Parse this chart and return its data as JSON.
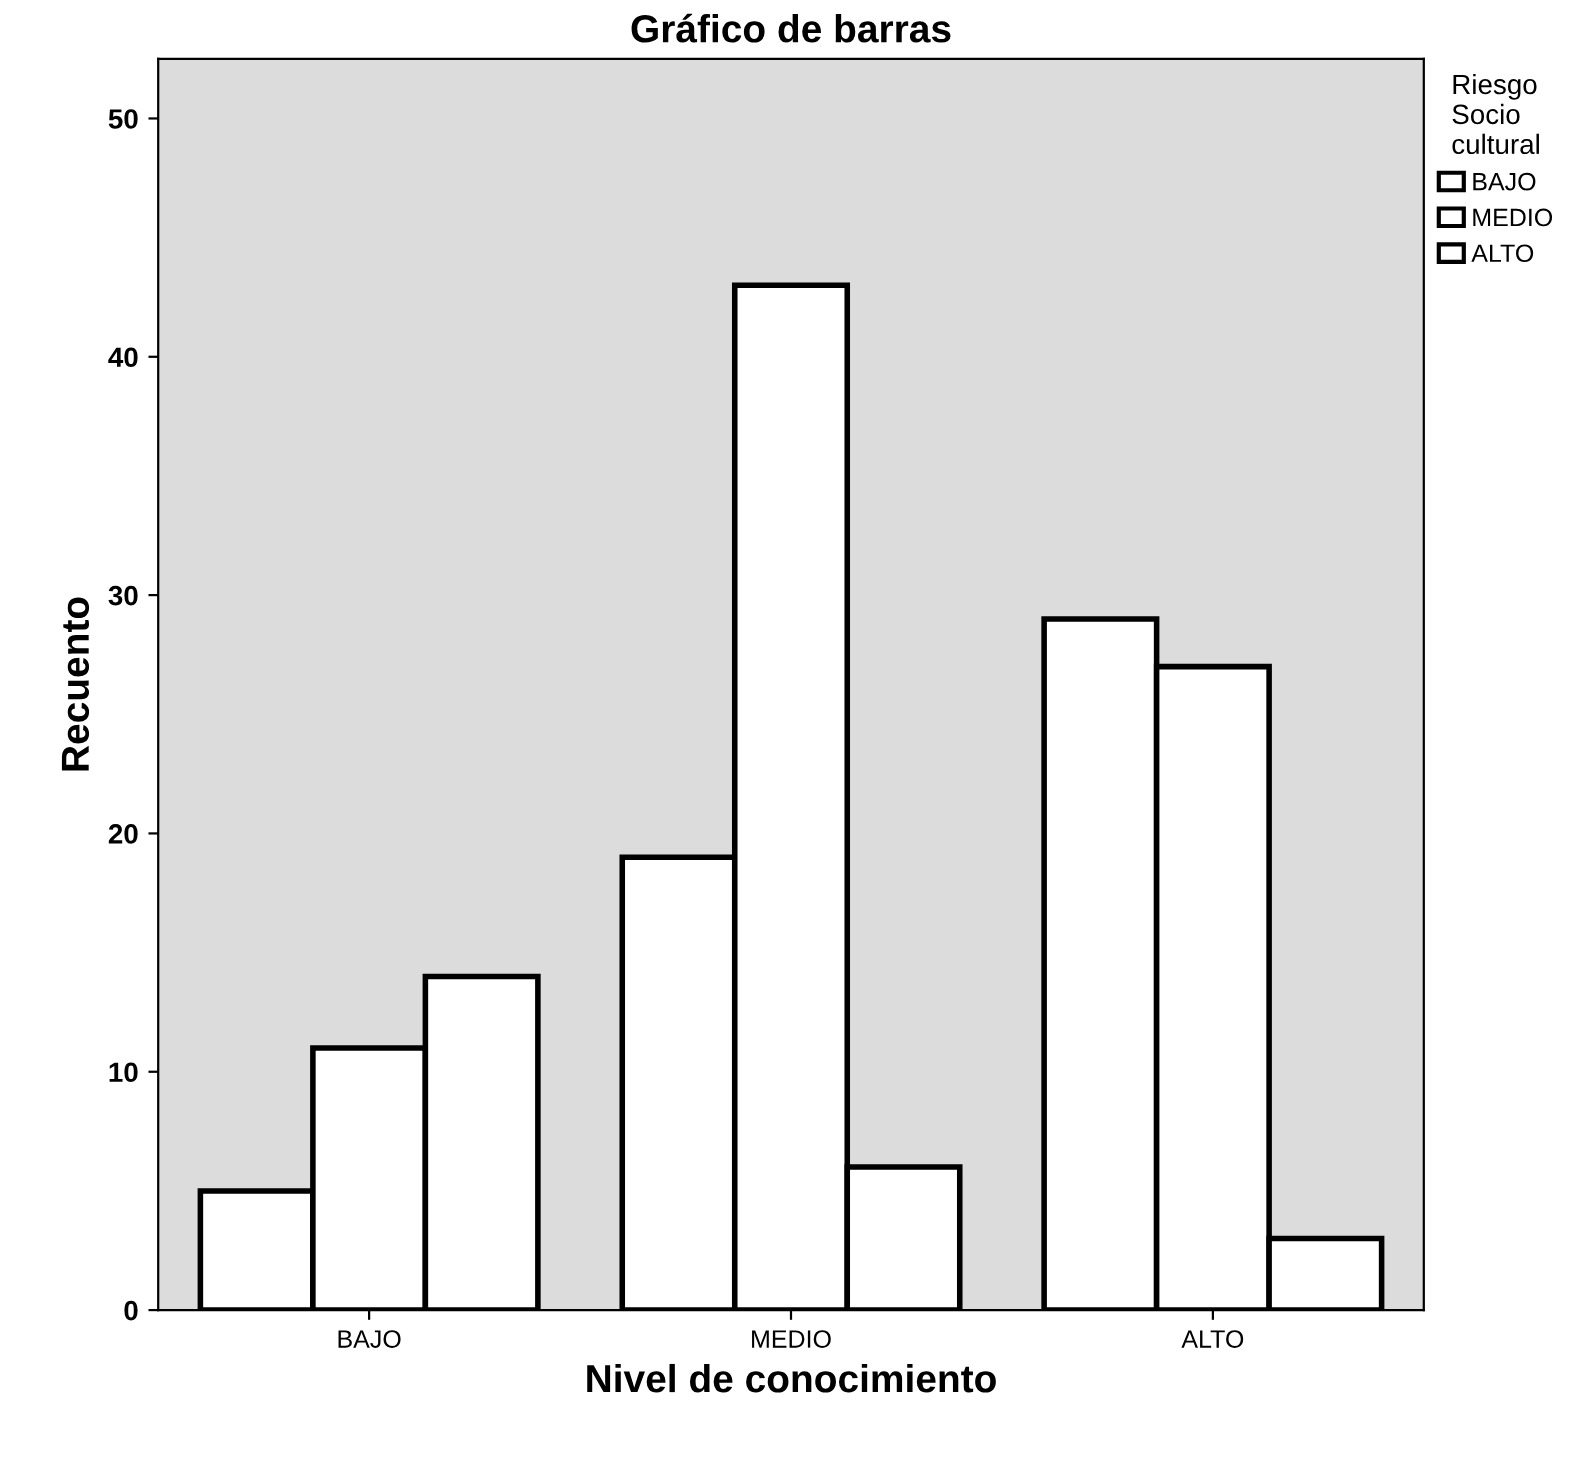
{
  "chart_data": {
    "type": "bar",
    "title": "Gráfico de barras",
    "xlabel": "Nivel de conocimiento",
    "ylabel": "Recuento",
    "legend_title": "Riesgo\nSocio\ncultural",
    "categories": [
      "BAJO",
      "MEDIO",
      "ALTO"
    ],
    "series": [
      {
        "name": "BAJO",
        "color": "#ffffff",
        "values": [
          5,
          19,
          29
        ]
      },
      {
        "name": "MEDIO",
        "color": "#ffffff",
        "values": [
          11,
          43,
          27
        ]
      },
      {
        "name": "ALTO",
        "color": "#ffffff",
        "values": [
          14,
          6,
          3
        ]
      }
    ],
    "ylim": [
      0,
      52.5
    ],
    "yticks": [
      0,
      10,
      20,
      30,
      40,
      50
    ],
    "grid": false,
    "legend": "right"
  }
}
